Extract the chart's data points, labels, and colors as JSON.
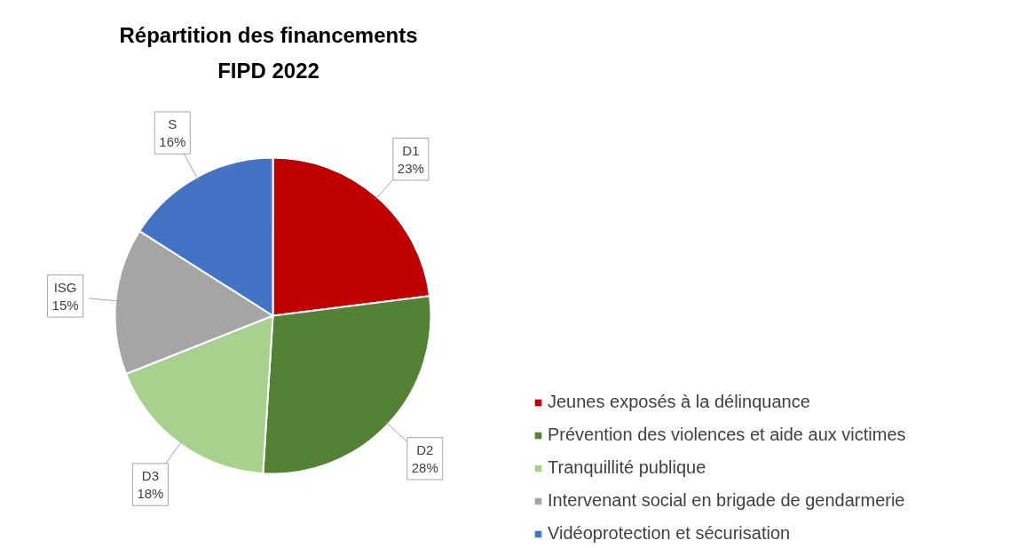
{
  "chart_data": {
    "type": "pie",
    "title": "Répartition des financements\nFIPD 2022",
    "categories": [
      "Jeunes exposés à la délinquance",
      "Prévention des violences et aide aux victimes",
      "Tranquillité publique",
      "Intervenant social en brigade de gendarmerie",
      "Vidéoprotection et sécurisation"
    ],
    "values": [
      23,
      28,
      18,
      15,
      16
    ],
    "colors": [
      "#c00000",
      "#538135",
      "#a9d18e",
      "#a5a5a5",
      "#4472c4"
    ],
    "value_labels": [
      "D1\n23%",
      "D2\n28%",
      "D3\n18%",
      "ISG\n15%",
      "S\n16%"
    ],
    "legend": "right"
  }
}
